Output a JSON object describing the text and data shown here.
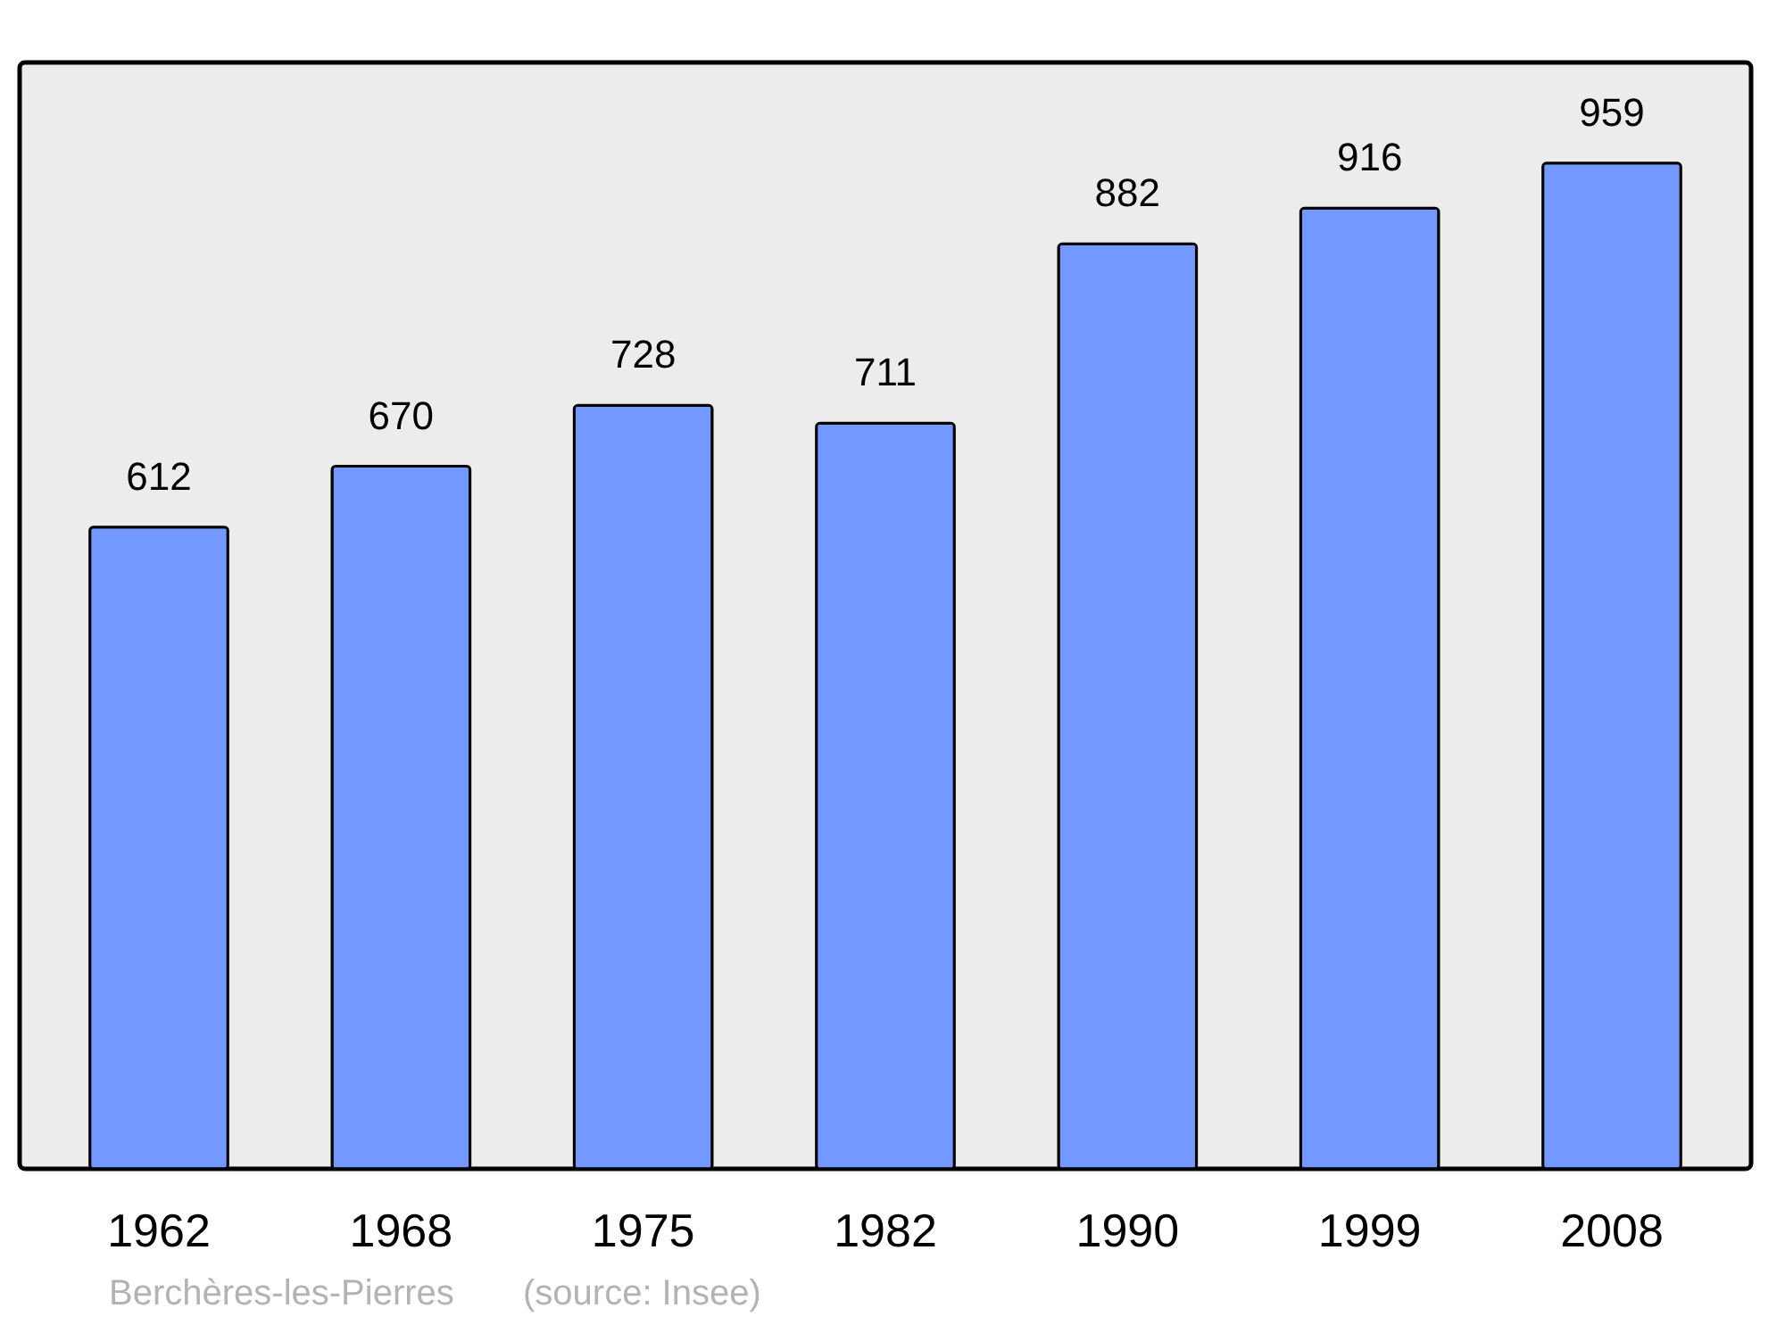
{
  "chart_data": {
    "type": "bar",
    "categories": [
      "1962",
      "1968",
      "1975",
      "1982",
      "1990",
      "1999",
      "2008"
    ],
    "values": [
      612,
      670,
      728,
      711,
      882,
      916,
      959
    ],
    "color": "#7398ff",
    "data_labels": true,
    "ylim": [
      0,
      1055
    ],
    "grid": false,
    "annotations": [
      "Berchères-les-Pierres",
      "(source: Insee)"
    ]
  }
}
